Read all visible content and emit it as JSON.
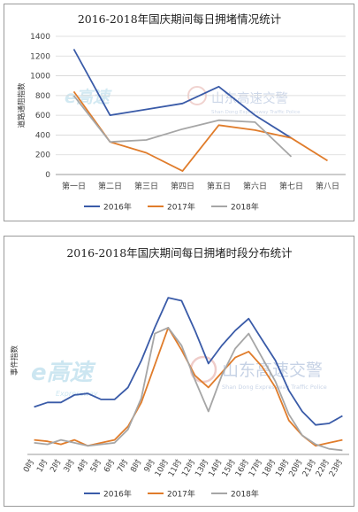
{
  "colors": {
    "s2016": "#3a5ba8",
    "s2017": "#e07c2b",
    "s2018": "#a6a6a6"
  },
  "chart_data": [
    {
      "type": "line",
      "title": "2016-2018年国庆期间每日拥堵情况统计",
      "ylabel": "道路通阻指数",
      "categories": [
        "第一日",
        "第二日",
        "第三日",
        "第四日",
        "第五日",
        "第六日",
        "第七日",
        "第八日"
      ],
      "ylim": [
        0,
        1400
      ],
      "yticks": [
        0,
        200,
        400,
        600,
        800,
        1000,
        1200,
        1400
      ],
      "grid": true,
      "legend": "bottom",
      "series": [
        {
          "name": "2016年",
          "values": [
            1270,
            600,
            660,
            720,
            890,
            600,
            370,
            null
          ]
        },
        {
          "name": "2017年",
          "values": [
            840,
            330,
            220,
            35,
            500,
            450,
            370,
            140
          ]
        },
        {
          "name": "2018年",
          "values": [
            800,
            330,
            350,
            460,
            550,
            530,
            180,
            null
          ]
        }
      ],
      "watermarks": {
        "left": "e高速",
        "right": "山东高速交警",
        "right_sub": "Shan Dong Expressway Traffic Police"
      }
    },
    {
      "type": "line",
      "title": "2016-2018年国庆期间每日拥堵时段分布统计",
      "ylabel": "事件指数",
      "categories": [
        "0时",
        "1时",
        "2时",
        "3时",
        "4时",
        "5时",
        "6时",
        "7时",
        "8时",
        "9时",
        "10时",
        "11时",
        "12时",
        "13时",
        "14时",
        "15时",
        "16时",
        "17时",
        "18时",
        "19时",
        "20时",
        "21时",
        "22时",
        "23时"
      ],
      "ylim": [
        0,
        100
      ],
      "grid": false,
      "legend": "bottom",
      "series": [
        {
          "name": "2016年",
          "values": [
            27,
            30,
            30,
            35,
            36,
            32,
            32,
            40,
            58,
            80,
            100,
            98,
            78,
            56,
            68,
            78,
            86,
            72,
            58,
            38,
            24,
            15,
            16,
            21
          ]
        },
        {
          "name": "2017年",
          "values": [
            5,
            4,
            2,
            5,
            1,
            3,
            5,
            14,
            30,
            55,
            80,
            65,
            48,
            40,
            50,
            60,
            64,
            54,
            40,
            18,
            8,
            1,
            3,
            5
          ]
        },
        {
          "name": "2018年",
          "values": [
            3,
            2,
            5,
            3,
            1,
            2,
            3,
            12,
            33,
            76,
            80,
            68,
            45,
            24,
            48,
            66,
            76,
            60,
            44,
            22,
            8,
            2,
            -1,
            -2
          ]
        }
      ],
      "watermarks": {
        "left": "e高速",
        "left_sub": "Expressway",
        "right": "山东高速交警",
        "right_sub": "Shan Dong Expressway Traffic Police"
      }
    }
  ]
}
